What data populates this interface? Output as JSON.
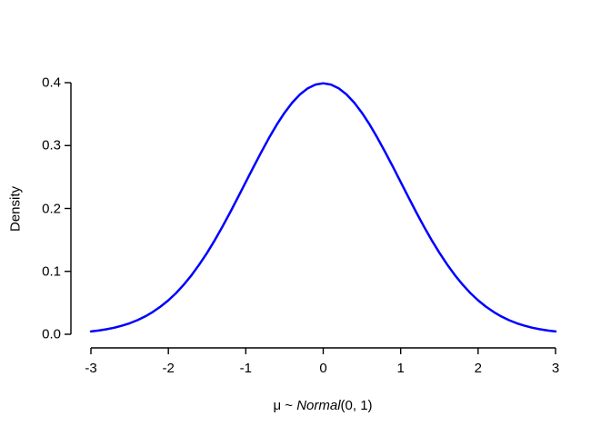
{
  "page": {
    "background_color": "#ffffff",
    "text_color": "#000000"
  },
  "chart_data": {
    "type": "line",
    "title": "",
    "ylabel": "Density",
    "xlabel": "μ ~ Normal(0, 1)",
    "xlabel_parts": {
      "prefix": "μ ~ ",
      "distribution": "Normal",
      "params": "(0, 1)"
    },
    "xlim": [
      -3,
      3
    ],
    "ylim": [
      0,
      0.4
    ],
    "grid": false,
    "legend": "none",
    "axis_color": "#000000",
    "x_ticks": {
      "values": [
        -3,
        -2,
        -1,
        0,
        1,
        2,
        3
      ],
      "labels": [
        "-3",
        "-2",
        "-1",
        "0",
        "1",
        "2",
        "3"
      ]
    },
    "y_ticks": {
      "values": [
        0,
        0.1,
        0.2,
        0.3,
        0.4
      ],
      "labels": [
        "0.0",
        "0.1",
        "0.2",
        "0.3",
        "0.4"
      ]
    },
    "series": [
      {
        "name": "standard-normal-density",
        "color": "#0000ff",
        "line_width": 2.5,
        "x": [
          -3.0,
          -2.9,
          -2.8,
          -2.7,
          -2.6,
          -2.5,
          -2.4,
          -2.3,
          -2.2,
          -2.1,
          -2.0,
          -1.9,
          -1.8,
          -1.7,
          -1.6,
          -1.5,
          -1.4,
          -1.3,
          -1.2,
          -1.1,
          -1.0,
          -0.9,
          -0.8,
          -0.7,
          -0.6,
          -0.5,
          -0.4,
          -0.3,
          -0.2,
          -0.1,
          0.0,
          0.1,
          0.2,
          0.3,
          0.4,
          0.5,
          0.6,
          0.7,
          0.8,
          0.9,
          1.0,
          1.1,
          1.2,
          1.3,
          1.4,
          1.5,
          1.6,
          1.7,
          1.8,
          1.9,
          2.0,
          2.1,
          2.2,
          2.3,
          2.4,
          2.5,
          2.6,
          2.7,
          2.8,
          2.9,
          3.0
        ],
        "y": [
          0.00443,
          0.00595,
          0.00792,
          0.01042,
          0.01358,
          0.01753,
          0.02239,
          0.02833,
          0.03547,
          0.04398,
          0.05399,
          0.06562,
          0.07895,
          0.09405,
          0.11092,
          0.12952,
          0.14973,
          0.17137,
          0.19419,
          0.21785,
          0.24197,
          0.26609,
          0.28969,
          0.31225,
          0.33322,
          0.35207,
          0.36827,
          0.38139,
          0.39104,
          0.39695,
          0.39894,
          0.39695,
          0.39104,
          0.38139,
          0.36827,
          0.35207,
          0.33322,
          0.31225,
          0.28969,
          0.26609,
          0.24197,
          0.21785,
          0.19419,
          0.17137,
          0.14973,
          0.12952,
          0.11092,
          0.09405,
          0.07895,
          0.06562,
          0.05399,
          0.04398,
          0.03547,
          0.02833,
          0.02239,
          0.01753,
          0.01358,
          0.01042,
          0.00792,
          0.00595,
          0.00443
        ]
      }
    ]
  }
}
